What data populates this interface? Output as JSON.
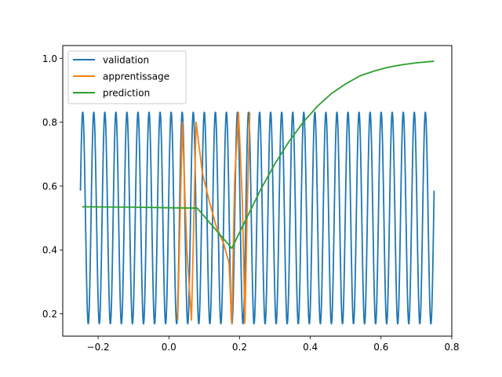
{
  "chart_data": {
    "type": "line",
    "title": "",
    "xlabel": "",
    "ylabel": "",
    "xlim": [
      -0.3,
      0.8
    ],
    "ylim": [
      0.13,
      1.04
    ],
    "xticks": [
      -0.2,
      0.0,
      0.2,
      0.4,
      0.6,
      0.8
    ],
    "xtick_labels": [
      "−0.2",
      "0.0",
      "0.2",
      "0.4",
      "0.6",
      "0.8"
    ],
    "yticks": [
      0.2,
      0.4,
      0.6,
      0.8,
      1.0
    ],
    "ytick_labels": [
      "0.2",
      "0.4",
      "0.6",
      "0.8",
      "1.0"
    ],
    "grid": false,
    "legend": "top-left",
    "series": [
      {
        "name": "validation",
        "color": "#1f77b4",
        "shape": "sinusoid",
        "x_range": [
          -0.25,
          0.75
        ],
        "center": 0.5,
        "amplitude": 0.3313,
        "cycles": 32,
        "phase_deg": 15
      },
      {
        "name": "apprentissage",
        "color": "#ff7f0e",
        "x": [
          0.025,
          0.038,
          0.051,
          0.064,
          0.077,
          0.095,
          0.115,
          0.135,
          0.155,
          0.17,
          0.178,
          0.186,
          0.197,
          0.208,
          0.215,
          0.222,
          0.229
        ],
        "y": [
          0.18,
          0.8,
          0.4,
          0.18,
          0.8,
          0.64,
          0.55,
          0.47,
          0.42,
          0.36,
          0.17,
          0.62,
          0.83,
          0.55,
          0.17,
          0.55,
          0.83
        ]
      },
      {
        "name": "prediction",
        "color": "#2ca02c",
        "x": [
          -0.245,
          -0.1,
          0.0,
          0.08,
          0.178,
          0.22,
          0.26,
          0.3,
          0.34,
          0.38,
          0.42,
          0.46,
          0.5,
          0.54,
          0.58,
          0.62,
          0.66,
          0.7,
          0.75
        ],
        "y": [
          0.535,
          0.534,
          0.532,
          0.531,
          0.405,
          0.5,
          0.59,
          0.67,
          0.74,
          0.8,
          0.85,
          0.89,
          0.92,
          0.945,
          0.96,
          0.972,
          0.98,
          0.986,
          0.991
        ]
      }
    ]
  }
}
